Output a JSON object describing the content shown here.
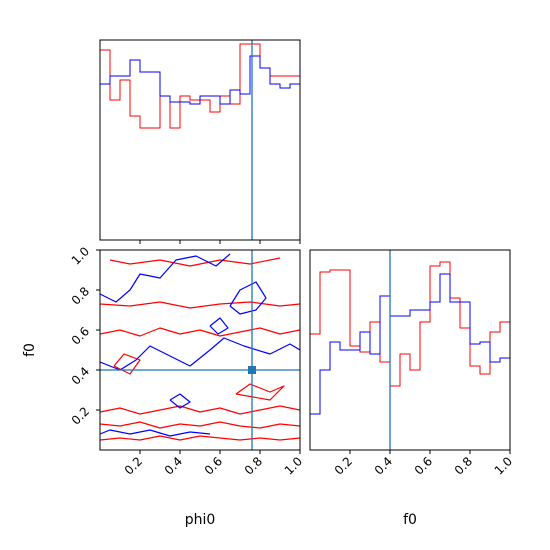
{
  "chart_data": [
    {
      "panel": "phi0-marginal",
      "type": "histogram-step",
      "xlim": [
        0,
        1
      ],
      "bin_edges": [
        0,
        0.05,
        0.1,
        0.15,
        0.2,
        0.25,
        0.3,
        0.35,
        0.4,
        0.45,
        0.5,
        0.55,
        0.6,
        0.65,
        0.7,
        0.75,
        0.8,
        0.85,
        0.9,
        0.95,
        1.0
      ],
      "truth": 0.76,
      "series": [
        {
          "color": "#ff0000",
          "values": [
            0.95,
            0.7,
            0.8,
            0.62,
            0.56,
            0.56,
            0.72,
            0.56,
            0.72,
            0.7,
            0.7,
            0.64,
            0.72,
            0.68,
            0.98,
            0.98,
            0.86,
            0.82,
            0.82,
            0.82
          ]
        },
        {
          "color": "#0000ff",
          "values": [
            0.78,
            0.82,
            0.82,
            0.9,
            0.84,
            0.84,
            0.72,
            0.69,
            0.69,
            0.68,
            0.72,
            0.72,
            0.68,
            0.75,
            0.73,
            0.92,
            0.86,
            0.78,
            0.76,
            0.78
          ]
        }
      ]
    },
    {
      "panel": "phi0-f0-joint",
      "type": "contour",
      "xlim": [
        0,
        1
      ],
      "ylim": [
        0,
        1
      ],
      "xlabel": "phi0",
      "ylabel": "f0",
      "xticks": [
        "0.2",
        "0.4",
        "0.6",
        "0.8",
        "1.0"
      ],
      "yticks": [
        "0.2",
        "0.4",
        "0.6",
        "0.8",
        "1.0"
      ],
      "truth": {
        "x": 0.76,
        "y": 0.4
      },
      "series": [
        {
          "color": "#ff0000",
          "contours": [
            [
              [
                0.0,
                0.05
              ],
              [
                0.1,
                0.06
              ],
              [
                0.2,
                0.05
              ],
              [
                0.3,
                0.07
              ],
              [
                0.4,
                0.05
              ],
              [
                0.5,
                0.07
              ],
              [
                0.6,
                0.06
              ],
              [
                0.7,
                0.05
              ],
              [
                0.8,
                0.06
              ],
              [
                0.9,
                0.05
              ],
              [
                1.0,
                0.06
              ]
            ],
            [
              [
                0.0,
                0.13
              ],
              [
                0.1,
                0.12
              ],
              [
                0.2,
                0.14
              ],
              [
                0.3,
                0.11
              ],
              [
                0.4,
                0.13
              ],
              [
                0.5,
                0.12
              ],
              [
                0.6,
                0.14
              ],
              [
                0.7,
                0.12
              ],
              [
                0.8,
                0.11
              ],
              [
                0.9,
                0.13
              ],
              [
                1.0,
                0.12
              ]
            ],
            [
              [
                0.0,
                0.19
              ],
              [
                0.1,
                0.21
              ],
              [
                0.2,
                0.18
              ],
              [
                0.3,
                0.2
              ],
              [
                0.4,
                0.22
              ],
              [
                0.5,
                0.19
              ],
              [
                0.6,
                0.21
              ],
              [
                0.7,
                0.18
              ],
              [
                0.8,
                0.2
              ],
              [
                0.9,
                0.22
              ],
              [
                1.0,
                0.2
              ]
            ],
            [
              [
                0.0,
                0.58
              ],
              [
                0.1,
                0.6
              ],
              [
                0.2,
                0.57
              ],
              [
                0.3,
                0.61
              ],
              [
                0.4,
                0.58
              ],
              [
                0.5,
                0.6
              ],
              [
                0.6,
                0.57
              ],
              [
                0.7,
                0.59
              ],
              [
                0.8,
                0.61
              ],
              [
                0.9,
                0.58
              ],
              [
                1.0,
                0.6
              ]
            ],
            [
              [
                0.0,
                0.73
              ],
              [
                0.15,
                0.72
              ],
              [
                0.3,
                0.74
              ],
              [
                0.45,
                0.71
              ],
              [
                0.6,
                0.73
              ],
              [
                0.75,
                0.74
              ],
              [
                0.9,
                0.72
              ],
              [
                1.0,
                0.73
              ]
            ],
            [
              [
                0.05,
                0.95
              ],
              [
                0.15,
                0.93
              ],
              [
                0.3,
                0.95
              ],
              [
                0.45,
                0.92
              ],
              [
                0.6,
                0.95
              ],
              [
                0.75,
                0.93
              ],
              [
                0.9,
                0.96
              ]
            ],
            [
              [
                0.07,
                0.42
              ],
              [
                0.12,
                0.48
              ],
              [
                0.2,
                0.45
              ],
              [
                0.15,
                0.38
              ],
              [
                0.07,
                0.42
              ]
            ],
            [
              [
                0.68,
                0.28
              ],
              [
                0.75,
                0.33
              ],
              [
                0.85,
                0.29
              ],
              [
                0.92,
                0.32
              ],
              [
                0.85,
                0.25
              ],
              [
                0.68,
                0.28
              ]
            ]
          ]
        },
        {
          "color": "#0000ff",
          "contours": [
            [
              [
                0.0,
                0.08
              ],
              [
                0.05,
                0.1
              ],
              [
                0.15,
                0.08
              ],
              [
                0.25,
                0.1
              ],
              [
                0.35,
                0.07
              ],
              [
                0.45,
                0.09
              ],
              [
                0.55,
                0.08
              ]
            ],
            [
              [
                0.0,
                0.44
              ],
              [
                0.1,
                0.4
              ],
              [
                0.18,
                0.45
              ],
              [
                0.25,
                0.52
              ],
              [
                0.35,
                0.47
              ],
              [
                0.45,
                0.42
              ],
              [
                0.55,
                0.5
              ],
              [
                0.62,
                0.56
              ],
              [
                0.72,
                0.52
              ],
              [
                0.85,
                0.48
              ],
              [
                0.95,
                0.53
              ],
              [
                1.0,
                0.5
              ]
            ],
            [
              [
                0.0,
                0.78
              ],
              [
                0.08,
                0.74
              ],
              [
                0.15,
                0.8
              ],
              [
                0.2,
                0.88
              ],
              [
                0.3,
                0.86
              ],
              [
                0.38,
                0.95
              ],
              [
                0.48,
                0.97
              ],
              [
                0.58,
                0.92
              ],
              [
                0.65,
                0.98
              ]
            ],
            [
              [
                0.65,
                0.72
              ],
              [
                0.7,
                0.8
              ],
              [
                0.78,
                0.84
              ],
              [
                0.83,
                0.76
              ],
              [
                0.78,
                0.7
              ],
              [
                0.7,
                0.68
              ],
              [
                0.65,
                0.72
              ]
            ],
            [
              [
                0.35,
                0.25
              ],
              [
                0.4,
                0.28
              ],
              [
                0.45,
                0.24
              ],
              [
                0.4,
                0.21
              ],
              [
                0.35,
                0.25
              ]
            ],
            [
              [
                0.55,
                0.62
              ],
              [
                0.6,
                0.66
              ],
              [
                0.64,
                0.61
              ],
              [
                0.59,
                0.58
              ],
              [
                0.55,
                0.62
              ]
            ]
          ]
        }
      ]
    },
    {
      "panel": "f0-marginal",
      "type": "histogram-step",
      "xlim": [
        0,
        1
      ],
      "xlabel": "f0",
      "xticks": [
        "0.2",
        "0.4",
        "0.6",
        "0.8",
        "1.0"
      ],
      "bin_edges": [
        0,
        0.05,
        0.1,
        0.15,
        0.2,
        0.25,
        0.3,
        0.35,
        0.4,
        0.45,
        0.5,
        0.55,
        0.6,
        0.65,
        0.7,
        0.75,
        0.8,
        0.85,
        0.9,
        0.95,
        1.0
      ],
      "truth": 0.4,
      "series": [
        {
          "color": "#ff0000",
          "values": [
            0.58,
            0.89,
            0.9,
            0.9,
            0.52,
            0.49,
            0.64,
            0.44,
            0.32,
            0.48,
            0.4,
            0.64,
            0.92,
            0.94,
            0.76,
            0.61,
            0.42,
            0.38,
            0.59,
            0.64
          ]
        },
        {
          "color": "#0000ff",
          "values": [
            0.18,
            0.4,
            0.54,
            0.5,
            0.5,
            0.59,
            0.48,
            0.77,
            0.67,
            0.67,
            0.7,
            0.7,
            0.74,
            0.88,
            0.74,
            0.74,
            0.53,
            0.54,
            0.44,
            0.46
          ]
        }
      ]
    }
  ]
}
